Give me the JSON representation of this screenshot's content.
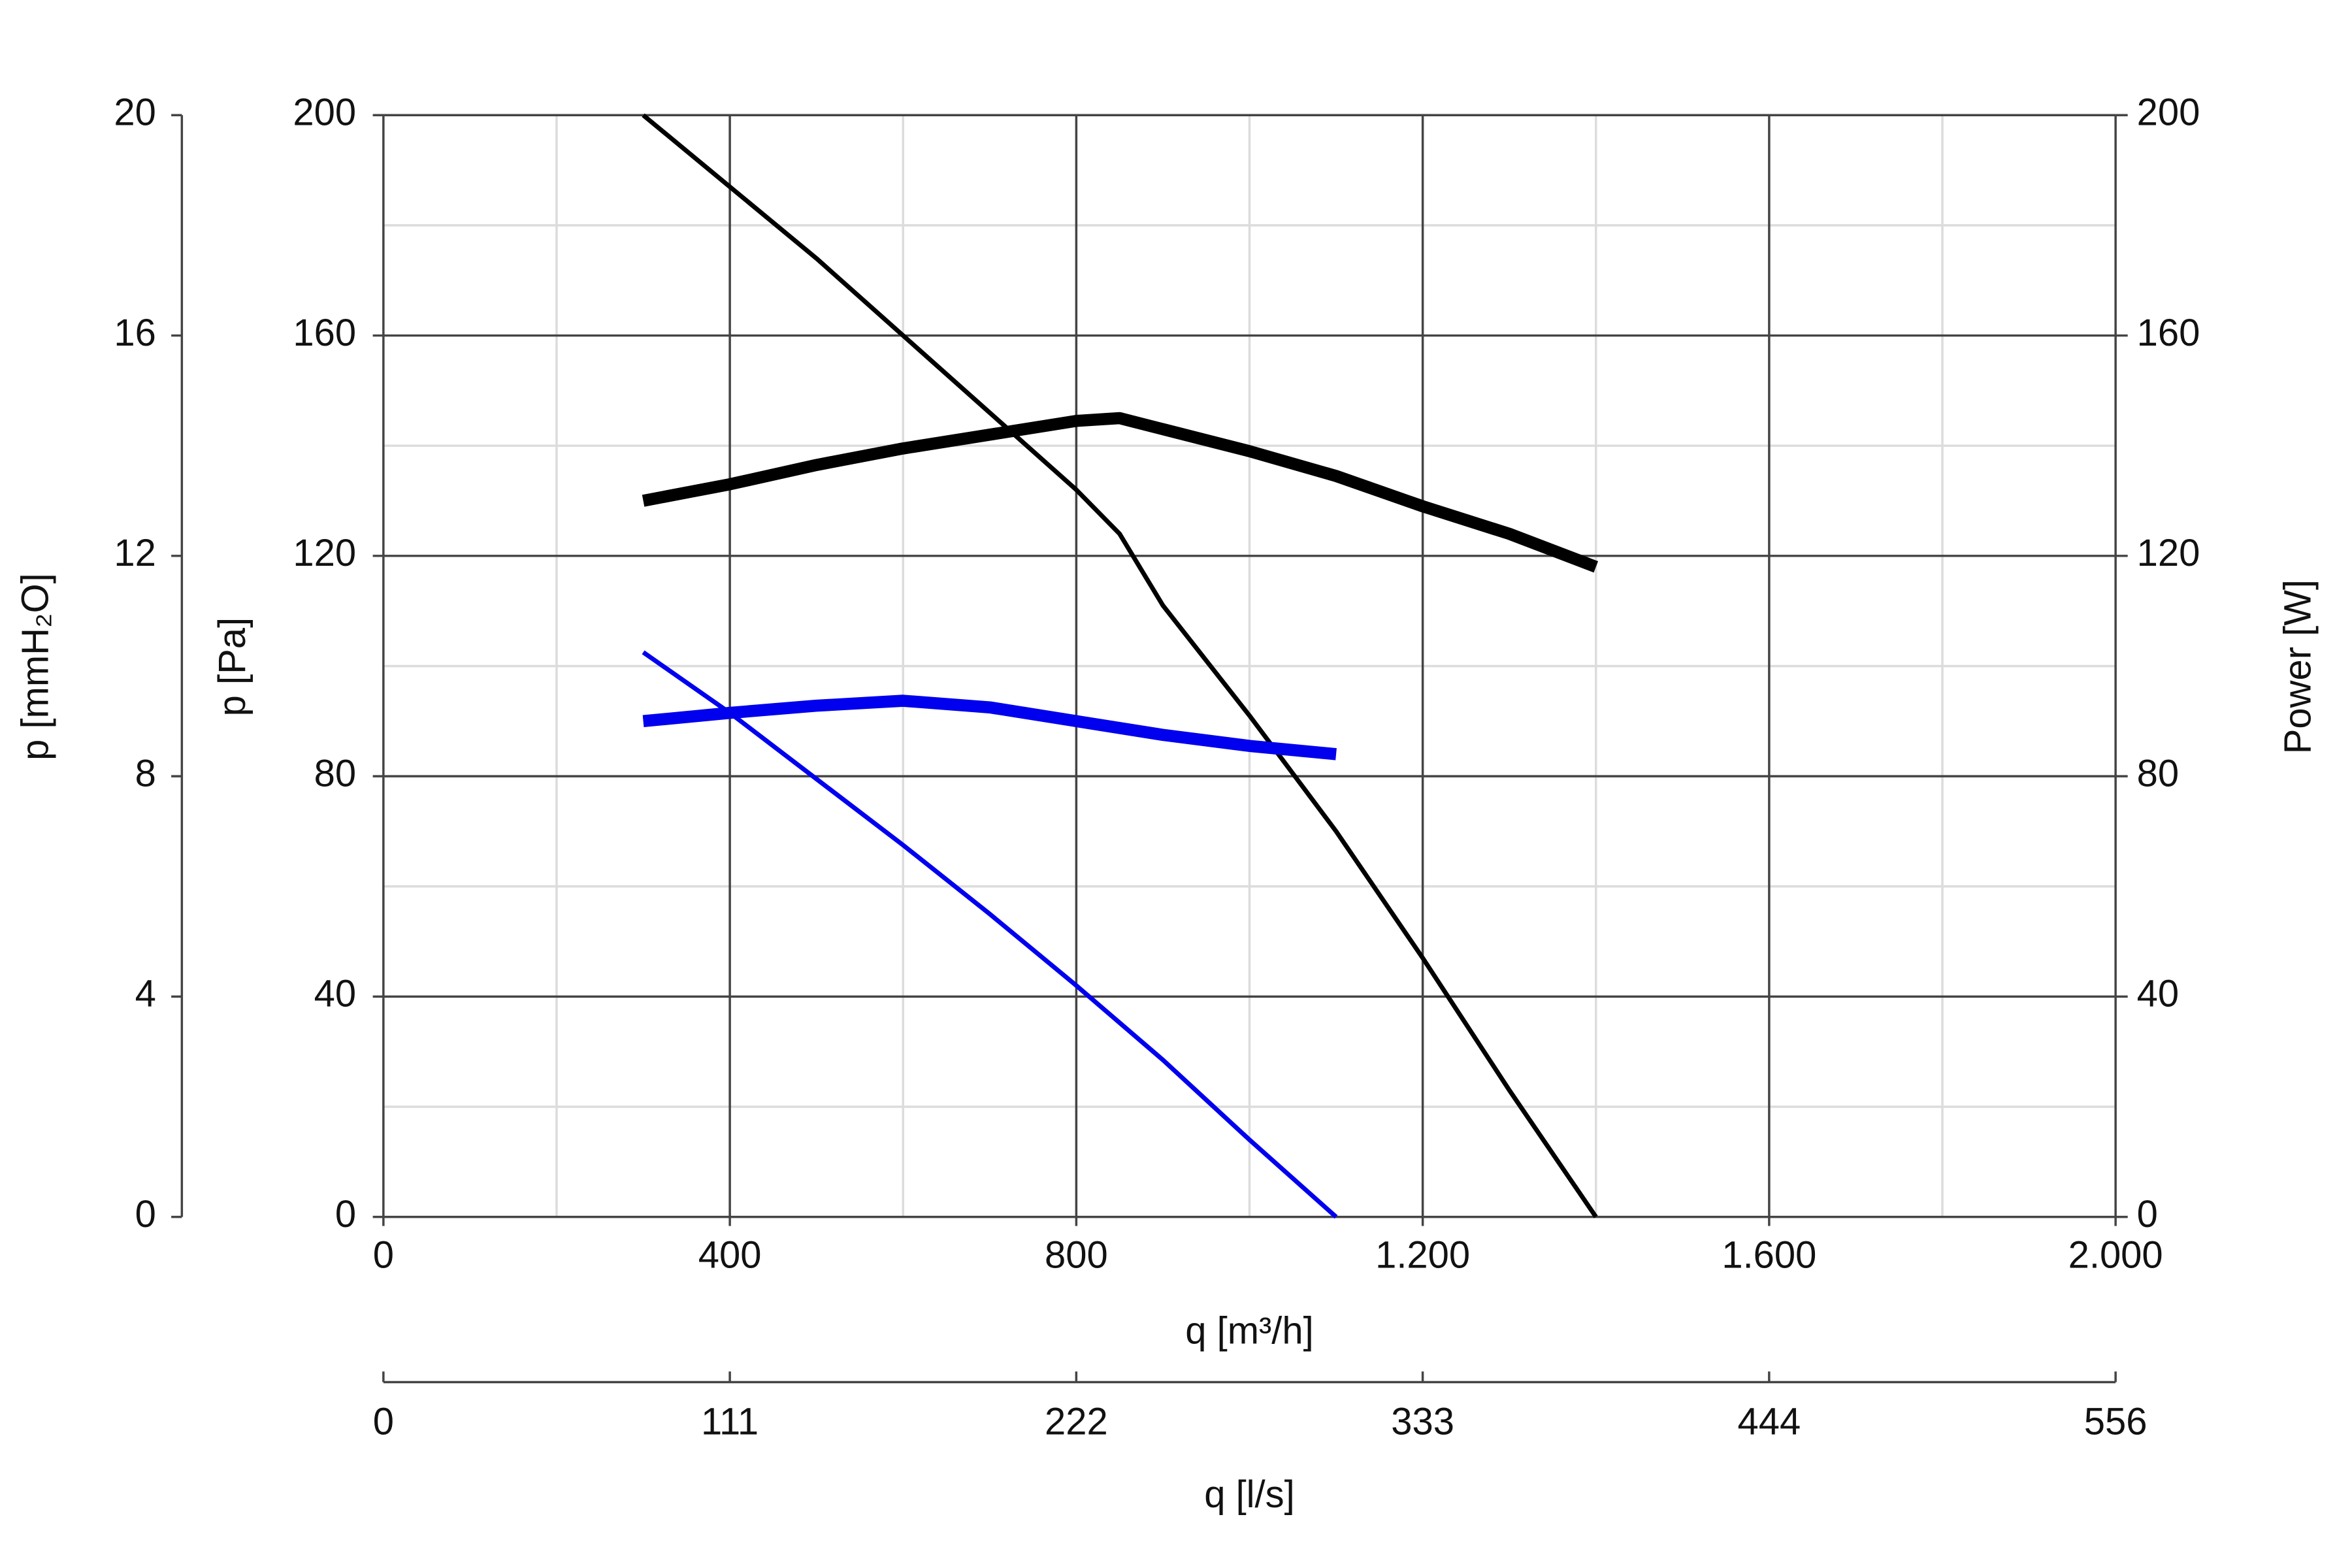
{
  "chart_data": {
    "type": "line",
    "x_label": "q [m³/h]",
    "x2_label": "q [l/s]",
    "y_label": "p [Pa]",
    "y2_label": "Power [W]",
    "y3_label": "p [mmH₂O]",
    "xlim": [
      0,
      2000
    ],
    "xticks": [
      0,
      400,
      800,
      {
        "value": 1200,
        "label": "1.200"
      },
      {
        "value": 1600,
        "label": "1.600"
      },
      {
        "value": 2000,
        "label": "2.000"
      }
    ],
    "x_minor_ticks": [
      200,
      600,
      1000,
      1400,
      1800
    ],
    "x2lim": [
      0,
      555.56
    ],
    "x2ticks": [
      0,
      {
        "value": 111.11,
        "label": "111"
      },
      {
        "value": 222.22,
        "label": "222"
      },
      {
        "value": 333.33,
        "label": "333"
      },
      {
        "value": 444.44,
        "label": "444"
      },
      {
        "value": 555.56,
        "label": "556"
      }
    ],
    "ylim": [
      0,
      200
    ],
    "yticks": [
      0,
      40,
      80,
      120,
      160,
      200
    ],
    "y_minor_ticks": [
      20,
      60,
      100,
      140,
      180
    ],
    "y2lim": [
      0,
      200
    ],
    "y2ticks": [
      0,
      40,
      80,
      120,
      160,
      200
    ],
    "y3lim": [
      0,
      20
    ],
    "y3ticks": [
      0,
      4,
      8,
      12,
      16,
      20
    ],
    "grid": true,
    "series": [
      {
        "color": "#000000",
        "line_width": 3,
        "x": [
          300,
          400,
          500,
          600,
          700,
          800,
          850,
          900,
          1000,
          1100,
          1200,
          1300,
          1400
        ],
        "values": [
          200,
          187,
          174,
          160,
          146,
          132,
          124,
          111,
          91,
          70,
          47,
          23,
          0
        ]
      },
      {
        "color": "#000000",
        "line_width": 8,
        "axis": "y2",
        "x": [
          300,
          400,
          500,
          600,
          700,
          800,
          850,
          900,
          1000,
          1100,
          1200,
          1300,
          1400
        ],
        "values": [
          130,
          133,
          136.5,
          139.5,
          142,
          144.5,
          145,
          143,
          139,
          134.5,
          129,
          124,
          118
        ]
      },
      {
        "color": "#0000ee",
        "line_width": 3,
        "x": [
          300,
          400,
          500,
          600,
          700,
          800,
          900,
          1000,
          1100
        ],
        "values": [
          102.5,
          91.5,
          79.5,
          67.5,
          55,
          42,
          28.5,
          14,
          0
        ]
      },
      {
        "color": "#0000ee",
        "line_width": 8,
        "axis": "y2",
        "x": [
          300,
          400,
          500,
          600,
          700,
          800,
          900,
          1000,
          1100
        ],
        "values": [
          90,
          91.5,
          92.8,
          93.7,
          92.5,
          90,
          87.5,
          85.5,
          84
        ]
      }
    ]
  }
}
